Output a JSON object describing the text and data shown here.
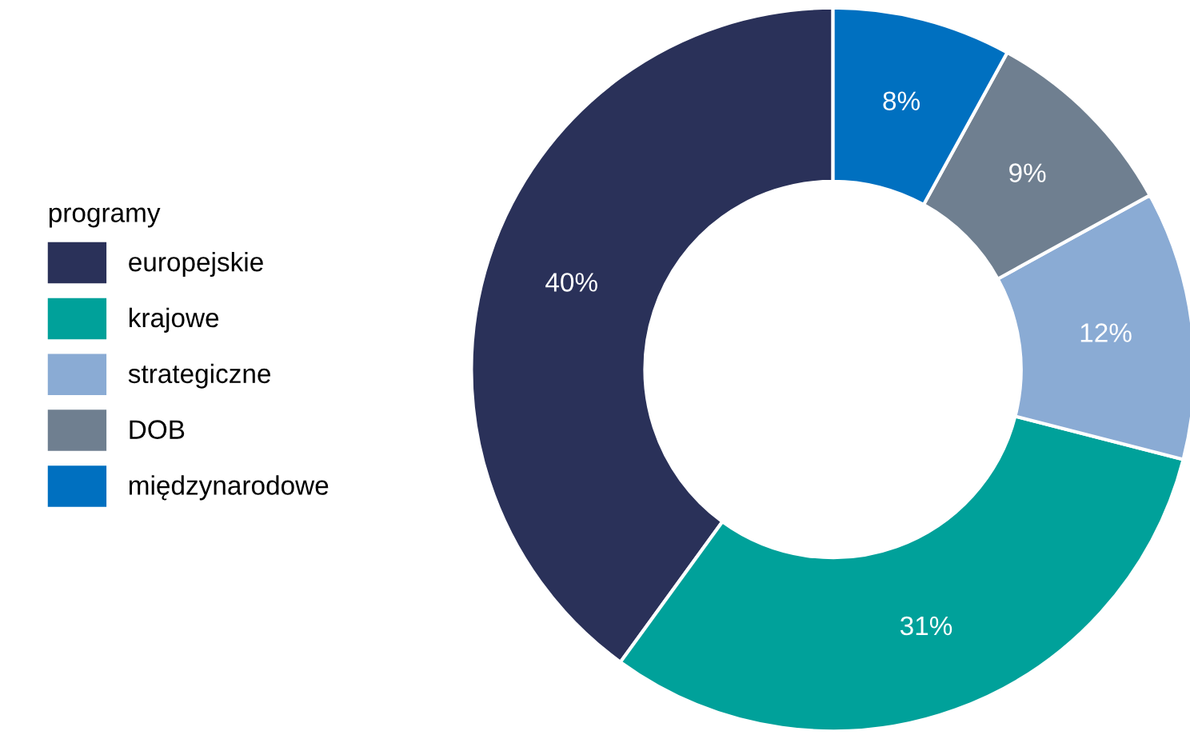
{
  "chart_data": {
    "type": "donut",
    "legend_title": "programy",
    "legend": "left",
    "categories": [
      "europejskie",
      "krajowe",
      "strategiczne",
      "DOB",
      "międzynarodowe"
    ],
    "values": [
      40,
      31,
      12,
      9,
      8
    ],
    "value_labels": [
      "40%",
      "31%",
      "12%",
      "9%",
      "8%"
    ],
    "colors": [
      "#2a3159",
      "#00a19a",
      "#8aabd4",
      "#6f7f90",
      "#0070c0"
    ]
  }
}
